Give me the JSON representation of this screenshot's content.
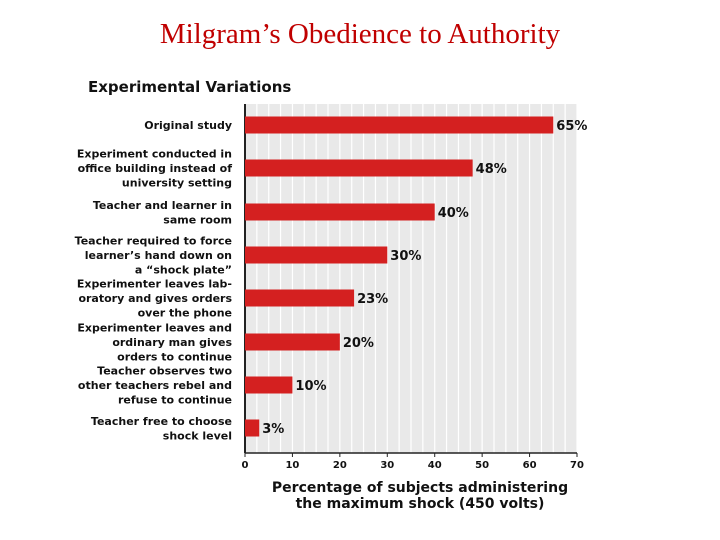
{
  "page": {
    "title": "Milgram’s Obedience to Authority"
  },
  "chart_data": {
    "type": "bar",
    "orientation": "horizontal",
    "title": "Experimental Variations",
    "xlabel": [
      "Percentage of subjects administering",
      "the maximum shock (450 volts)"
    ],
    "ylabel": "",
    "xlim": [
      0,
      70
    ],
    "xticks": [
      "0",
      "10",
      "20",
      "30",
      "40",
      "50",
      "60",
      "70"
    ],
    "grid": true,
    "bar_color": "#d42020",
    "categories": [
      [
        "Original study"
      ],
      [
        "Experiment conducted in",
        "office building instead of",
        "university setting"
      ],
      [
        "Teacher and learner in",
        "same room"
      ],
      [
        "Teacher required to force",
        "learner’s hand down on",
        "a “shock plate”"
      ],
      [
        "Experimenter leaves lab-",
        "oratory and gives orders",
        "over the phone"
      ],
      [
        "Experimenter leaves and",
        "ordinary man gives",
        "orders to continue"
      ],
      [
        "Teacher observes two",
        "other teachers rebel and",
        "refuse to continue"
      ],
      [
        "Teacher free to choose",
        "shock level"
      ]
    ],
    "values": [
      65,
      48,
      40,
      30,
      23,
      20,
      10,
      3
    ],
    "value_labels": [
      "65%",
      "48%",
      "40%",
      "30%",
      "23%",
      "20%",
      "10%",
      "3%"
    ]
  }
}
